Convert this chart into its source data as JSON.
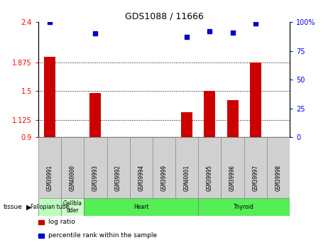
{
  "title": "GDS1088 / 11666",
  "samples": [
    "GSM39991",
    "GSM40000",
    "GSM39993",
    "GSM39992",
    "GSM39994",
    "GSM39999",
    "GSM40001",
    "GSM39995",
    "GSM39996",
    "GSM39997",
    "GSM39998"
  ],
  "log_ratio": [
    1.95,
    0.9,
    1.48,
    0.9,
    0.9,
    0.9,
    1.23,
    1.5,
    1.38,
    1.87,
    0.9
  ],
  "percentile_rank": [
    100,
    0,
    90,
    0,
    0,
    0,
    87,
    92,
    91,
    99,
    0
  ],
  "ylim_left": [
    0.9,
    2.4
  ],
  "ylim_right": [
    0,
    100
  ],
  "yticks_left": [
    0.9,
    1.125,
    1.5,
    1.875,
    2.4
  ],
  "yticks_right": [
    0,
    25,
    50,
    75,
    100
  ],
  "ytick_labels_left": [
    "0.9",
    "1.125",
    "1.5",
    "1.875",
    "2.4"
  ],
  "ytick_labels_right": [
    "0",
    "25",
    "50",
    "75",
    "100%"
  ],
  "hlines": [
    1.125,
    1.5,
    1.875
  ],
  "bar_color": "#cc0000",
  "dot_color": "#0000cc",
  "baseline": 0.9,
  "tissue_groups": [
    {
      "label": "Fallopian tube",
      "start": 0,
      "end": 1,
      "color": "#bbffbb"
    },
    {
      "label": "Gallbla\ndder",
      "start": 1,
      "end": 2,
      "color": "#ccffcc"
    },
    {
      "label": "Heart",
      "start": 2,
      "end": 7,
      "color": "#55ee55"
    },
    {
      "label": "Thyroid",
      "start": 7,
      "end": 11,
      "color": "#55ee55"
    }
  ],
  "legend_items": [
    {
      "label": "log ratio",
      "color": "#cc0000"
    },
    {
      "label": "percentile rank within the sample",
      "color": "#0000cc"
    }
  ],
  "bg_color": "#ffffff",
  "plot_bg": "#ffffff",
  "spine_color": "#000000",
  "tick_color": "#000000",
  "sample_box_color": "#d0d0d0",
  "sample_box_edge": "#888888"
}
